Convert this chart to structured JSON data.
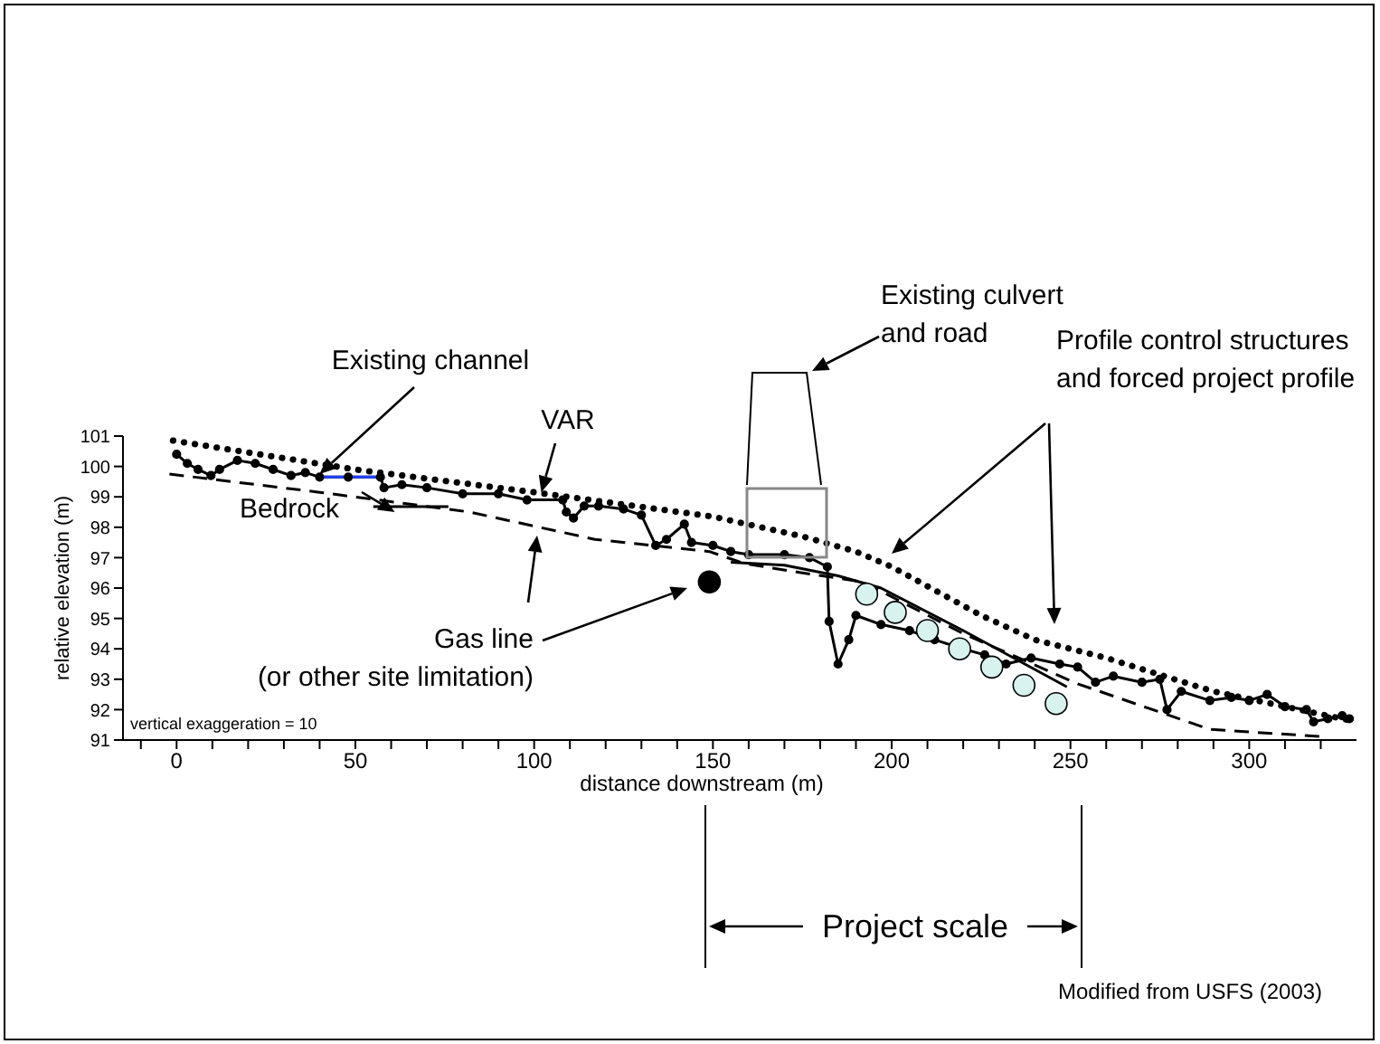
{
  "chart_data": {
    "type": "line",
    "xlabel": "distance downstream (m)",
    "ylabel": "relative elevation (m)",
    "xlim": [
      -15,
      330
    ],
    "ylim": [
      91,
      101
    ],
    "xticks": [
      {
        "value": -10,
        "label": null
      },
      0,
      {
        "value": 10,
        "label": null
      },
      {
        "value": 20,
        "label": null
      },
      {
        "value": 30,
        "label": null
      },
      {
        "value": 40,
        "label": null
      },
      50,
      {
        "value": 60,
        "label": null
      },
      {
        "value": 70,
        "label": null
      },
      {
        "value": 80,
        "label": null
      },
      {
        "value": 90,
        "label": null
      },
      100,
      {
        "value": 110,
        "label": null
      },
      {
        "value": 120,
        "label": null
      },
      {
        "value": 130,
        "label": null
      },
      {
        "value": 140,
        "label": null
      },
      150,
      {
        "value": 160,
        "label": null
      },
      {
        "value": 170,
        "label": null
      },
      {
        "value": 180,
        "label": null
      },
      {
        "value": 190,
        "label": null
      },
      200,
      {
        "value": 210,
        "label": null
      },
      {
        "value": 220,
        "label": null
      },
      {
        "value": 230,
        "label": null
      },
      {
        "value": 240,
        "label": null
      },
      250,
      {
        "value": 260,
        "label": null
      },
      {
        "value": 270,
        "label": null
      },
      {
        "value": 280,
        "label": null
      },
      {
        "value": 290,
        "label": null
      },
      300,
      {
        "value": 310,
        "label": null
      },
      {
        "value": 320,
        "label": null
      }
    ],
    "yticks": [
      91,
      92,
      93,
      94,
      95,
      96,
      97,
      98,
      99,
      100,
      101
    ],
    "series": [
      {
        "color": "#000000",
        "line_style": "dashed",
        "marker": "none",
        "x": [
          -2,
          40,
          82,
          117,
          149,
          159,
          175,
          192,
          220,
          252,
          289,
          322
        ],
        "values": [
          99.75,
          99.15,
          98.5,
          97.6,
          97.2,
          96.8,
          96.5,
          96.2,
          94.5,
          92.85,
          91.35,
          91.1
        ]
      },
      {
        "color": "#000000",
        "line_style": "solid",
        "marker": "circle",
        "x": [
          0,
          3,
          6,
          9.6,
          12,
          17,
          22,
          27,
          32,
          36,
          40,
          48,
          57,
          58,
          63,
          70,
          80,
          90,
          98,
          108,
          109,
          111,
          114,
          118,
          125,
          130,
          134,
          137,
          142,
          144,
          150,
          155,
          160,
          170,
          177,
          182,
          182.5,
          185,
          188,
          190,
          197,
          205,
          212,
          220,
          226,
          232,
          239,
          247,
          252,
          257,
          262,
          270,
          275,
          277,
          281,
          289,
          295,
          300,
          305,
          310,
          316,
          318,
          322,
          326,
          328
        ],
        "values": [
          100.4,
          100.1,
          99.9,
          99.7,
          99.9,
          100.2,
          100.1,
          99.9,
          99.7,
          99.8,
          99.65,
          99.65,
          99.65,
          99.3,
          99.4,
          99.3,
          99.1,
          99.1,
          98.9,
          98.9,
          98.5,
          98.3,
          98.7,
          98.7,
          98.6,
          98.4,
          97.4,
          97.6,
          98.1,
          97.5,
          97.4,
          97.2,
          97.1,
          97.1,
          97.0,
          96.7,
          94.9,
          93.5,
          94.3,
          95.1,
          94.8,
          94.6,
          94.3,
          94.0,
          93.8,
          93.5,
          93.7,
          93.5,
          93.4,
          92.9,
          93.1,
          92.9,
          93.0,
          92.0,
          92.6,
          92.3,
          92.4,
          92.3,
          92.5,
          92.1,
          92.0,
          91.6,
          91.7,
          91.8,
          91.7
        ]
      },
      {
        "color": "#1f3fff",
        "line_style": "solid",
        "marker": "none",
        "x": [
          40,
          57
        ],
        "values": [
          99.65,
          99.65
        ]
      },
      {
        "color": "#000000",
        "line_style": "solid",
        "marker": "none",
        "x": [
          55,
          76
        ],
        "values": [
          98.68,
          98.68
        ]
      },
      {
        "color": "#000000",
        "line_style": "dotted",
        "marker": "none",
        "x": [
          -1,
          50,
          100,
          150,
          175,
          190,
          200,
          225,
          240,
          260,
          290,
          328
        ],
        "values": [
          100.85,
          99.9,
          99.15,
          98.35,
          97.7,
          97.2,
          96.7,
          95.1,
          94.3,
          93.7,
          92.6,
          91.65
        ]
      },
      {
        "color": "#000000",
        "line_style": "solid",
        "marker": "none",
        "x": [
          155,
          170,
          185,
          197,
          220,
          249
        ],
        "values": [
          96.85,
          96.75,
          96.4,
          96.0,
          94.6,
          92.75
        ]
      },
      {
        "type": "scatter",
        "color": "#000000",
        "marker": "circle",
        "x": [
          149
        ],
        "values": [
          96.2
        ]
      },
      {
        "type": "scatter",
        "color": "#d8f3ee",
        "marker": "circle",
        "x": [
          193,
          201,
          210,
          219,
          228,
          237,
          246
        ],
        "values": [
          95.8,
          95.2,
          94.6,
          94.0,
          93.4,
          92.8,
          92.2
        ]
      }
    ],
    "annotations": [
      {
        "text": "Existing channel",
        "x": 40,
        "y": 99.75
      },
      {
        "text": "VAR",
        "x": 102,
        "y": 99.15
      },
      {
        "text": "Bedrock",
        "x": 61,
        "y": 98.5
      },
      "Gas line\n(or other site limitation)",
      "Existing culvert\nand road",
      "Profile control structures\nand forced project profile",
      "vertical exaggeration = 10",
      "Project scale",
      "Modified from USFS (2003)"
    ]
  }
}
